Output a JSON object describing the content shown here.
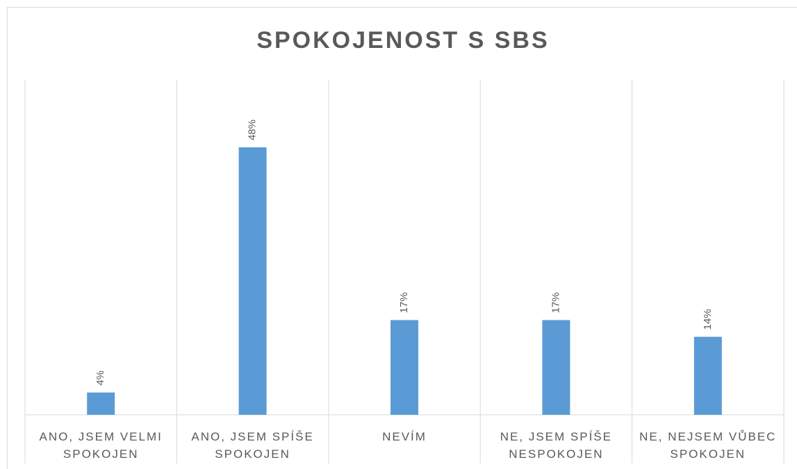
{
  "chart_data": {
    "type": "bar",
    "title": "SPOKOJENOST S SBS",
    "categories": [
      "ANO, JSEM VELMI SPOKOJEN",
      "ANO, JSEM SPÍŠE SPOKOJEN",
      "NEVÍM",
      "NE, JSEM SPÍŠE NESPOKOJEN",
      "NE, NEJSEM VŮBEC SPOKOJEN"
    ],
    "values": [
      4,
      48,
      17,
      17,
      14
    ],
    "value_labels": [
      "4%",
      "48%",
      "17%",
      "17%",
      "14%"
    ],
    "color": "#5b9bd5"
  }
}
